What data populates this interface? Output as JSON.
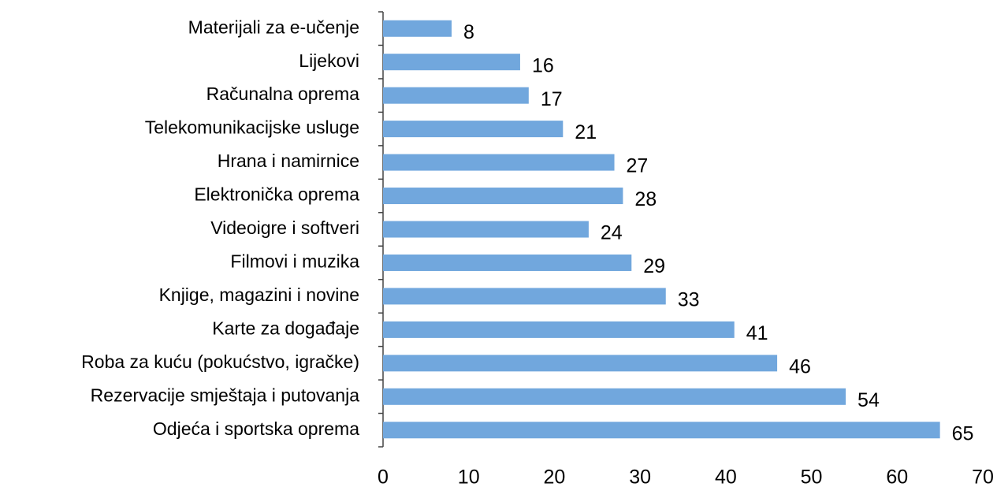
{
  "chart_data": {
    "type": "bar",
    "orientation": "horizontal",
    "categories": [
      "Materijali za e-učenje",
      "Lijekovi",
      "Računalna oprema",
      "Telekomunikacijske usluge",
      "Hrana i namirnice",
      "Elektronička oprema",
      "Videoigre i softveri",
      "Filmovi i muzika",
      "Knjige, magazini i novine",
      "Karte za događaje",
      "Roba za kuću (pokućstvo, igračke)",
      "Rezervacije smještaja i putovanja",
      "Odjeća i sportska oprema"
    ],
    "values": [
      8,
      16,
      17,
      21,
      27,
      28,
      24,
      29,
      33,
      41,
      46,
      54,
      65
    ],
    "color": "#71a7dd",
    "xlim": [
      0,
      70
    ],
    "xticks": [
      0,
      10,
      20,
      30,
      40,
      50,
      60,
      70
    ],
    "grid": false
  }
}
